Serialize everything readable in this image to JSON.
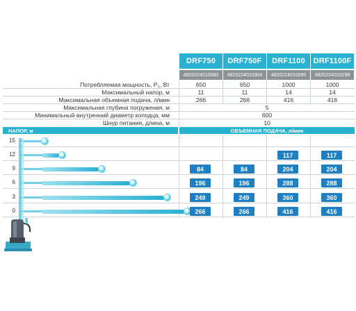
{
  "models": [
    {
      "name": "DRF750",
      "code": "4820224010083"
    },
    {
      "name": "DRF750F",
      "code": "4820224010304"
    },
    {
      "name": "DRF1100",
      "code": "4820224010090"
    },
    {
      "name": "DRF1100F",
      "code": "4820224010298"
    }
  ],
  "specs": {
    "power": {
      "label_pre": "Потребляемая мощность, P",
      "label_sub": "1",
      "label_post": ", Вт",
      "values": [
        "650",
        "650",
        "1000",
        "1000"
      ]
    },
    "max_head": {
      "label": "Максимальный напор, м",
      "values": [
        "11",
        "11",
        "14",
        "14"
      ]
    },
    "max_flow": {
      "label": "Максимальная объемная подача, л/мин",
      "values": [
        "266",
        "266",
        "416",
        "416"
      ]
    },
    "max_depth": {
      "label": "Максимальная глубина погружения, м",
      "value": "5"
    },
    "min_diameter": {
      "label": "Минимальный внутренний диаметр колодца, мм",
      "value": "600"
    },
    "cord": {
      "label": "Шнур питания, длина, м",
      "value": "10"
    }
  },
  "flow_table": {
    "head_label": "НАПОР, м",
    "flow_label": "ОБЪЕМНАЯ ПОДАЧА, л/мин",
    "rows": [
      {
        "head": "15",
        "jet": 0.0,
        "values": [
          "",
          "",
          "",
          ""
        ]
      },
      {
        "head": "12",
        "jet": 0.12,
        "values": [
          "",
          "",
          "117",
          "117"
        ]
      },
      {
        "head": "9",
        "jet": 0.4,
        "values": [
          "84",
          "84",
          "204",
          "204"
        ]
      },
      {
        "head": "6",
        "jet": 0.62,
        "values": [
          "196",
          "196",
          "288",
          "288"
        ]
      },
      {
        "head": "3",
        "jet": 0.86,
        "values": [
          "249",
          "249",
          "360",
          "360"
        ]
      },
      {
        "head": "0",
        "jet": 1.0,
        "values": [
          "266",
          "266",
          "416",
          "416"
        ]
      }
    ]
  },
  "colors": {
    "accent": "#29b1d2",
    "badge": "#1e7fc2",
    "code_bar": "#8d9296"
  },
  "icons": {
    "pump": "submersible-pump-icon",
    "water": "water-jet-icon"
  }
}
